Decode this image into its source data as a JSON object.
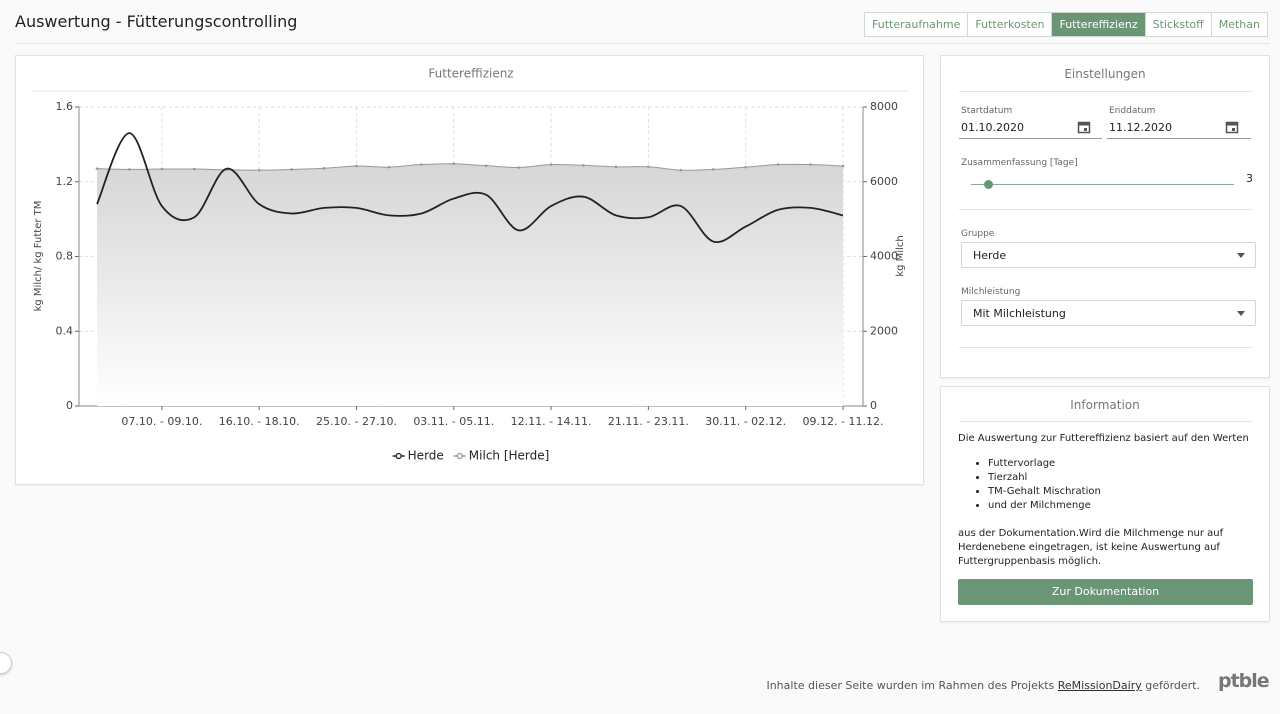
{
  "header": {
    "title": "Auswertung - Fütterungscontrolling"
  },
  "tabs": [
    "Futteraufnahme",
    "Futterkosten",
    "Futtereffizienz",
    "Stickstoff",
    "Methan"
  ],
  "active_tab": 2,
  "chart_data": {
    "type": "line",
    "title": "Futtereffizienz",
    "categories": [
      null,
      null,
      "07.10. - 09.10.",
      null,
      null,
      "16.10. - 18.10.",
      null,
      null,
      "25.10. - 27.10.",
      null,
      null,
      "03.11. - 05.11.",
      null,
      null,
      "12.11. - 14.11.",
      null,
      null,
      "21.11. - 23.11.",
      null,
      null,
      "30.11. - 02.12.",
      null,
      null,
      "09.12. - 11.12."
    ],
    "series": [
      {
        "name": "Herde",
        "color": "#222222",
        "values": [
          1.08,
          1.46,
          1.07,
          1.01,
          1.27,
          1.08,
          1.03,
          1.06,
          1.06,
          1.02,
          1.03,
          1.11,
          1.13,
          0.94,
          1.07,
          1.12,
          1.02,
          1.01,
          1.07,
          0.88,
          0.96,
          1.05,
          1.06,
          1.02
        ]
      },
      {
        "name": "Milch [Herde]",
        "color": "#999999",
        "axis": "y2",
        "values": [
          6350,
          6330,
          6340,
          6340,
          6320,
          6310,
          6330,
          6360,
          6420,
          6390,
          6460,
          6480,
          6430,
          6380,
          6460,
          6440,
          6400,
          6400,
          6310,
          6330,
          6390,
          6460,
          6460,
          6420
        ]
      }
    ],
    "ylabel": "kg Milch/ kg Futter TM",
    "y2label": "kg Milch",
    "ylim": [
      0,
      1.6
    ],
    "yticks": [
      0,
      0.4,
      0.8,
      1.2,
      1.6
    ],
    "y2lim": [
      0,
      8000
    ],
    "y2ticks": [
      0,
      2000,
      4000,
      6000,
      8000
    ],
    "grid": true
  },
  "settings": {
    "title": "Einstellungen",
    "start_label": "Startdatum",
    "start_value": "01.10.2020",
    "end_label": "Enddatum",
    "end_value": "11.12.2020",
    "summary_label": "Zusammenfassung [Tage]",
    "summary_value": "3",
    "group_label": "Gruppe",
    "group_value": "Herde",
    "milk_label": "Milchleistung",
    "milk_value": "Mit Milchleistung"
  },
  "information": {
    "title": "Information",
    "intro": "Die Auswertung zur Futtereffizienz basiert auf den Werten",
    "items": [
      "Futtervorlage",
      "Tierzahl",
      "TM-Gehalt Mischration",
      "und der Milchmenge"
    ],
    "text": "aus der Dokumentation.Wird die Milchmenge nur auf Herdenebene eingetragen, ist keine Auswertung auf Futtergruppenbasis möglich.",
    "button": "Zur Dokumentation"
  },
  "footer": {
    "text_before": "Inhalte dieser Seite wurden im Rahmen des Projekts ",
    "link": "ReMissionDairy",
    "text_after": " gefördert.",
    "logo": "ptble"
  }
}
